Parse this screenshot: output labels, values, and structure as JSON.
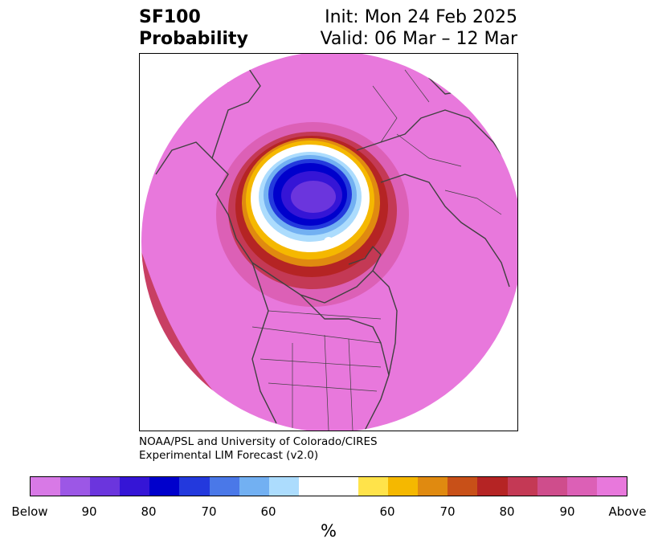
{
  "title": {
    "variable": "SF100",
    "metric": "Probability",
    "init": "Init: Mon 24 Feb 2025",
    "valid": "Valid: 06 Mar – 12 Mar"
  },
  "credit": {
    "line1": "NOAA/PSL and University of Colorado/CIRES",
    "line2": "Experimental LIM Forecast (v2.0)"
  },
  "legend": {
    "unit": "%",
    "colors": [
      "#d879e6",
      "#9c57e6",
      "#6b35dd",
      "#3515d6",
      "#0000cc",
      "#2339dd",
      "#4a78e8",
      "#72b0f2",
      "#acdcfd",
      "#ffffff",
      "#ffffff",
      "#ffe34a",
      "#f5b800",
      "#e08a10",
      "#c85018",
      "#b52424",
      "#c43955",
      "#cf4d8c",
      "#dc60b6",
      "#e878dc"
    ],
    "ticks": [
      "Below",
      "90",
      "80",
      "70",
      "60",
      "60",
      "70",
      "80",
      "90",
      "Above"
    ]
  },
  "colors": {
    "above_fill": "#e878dc",
    "below_core": "#6b35dd",
    "coastline": "#404040"
  }
}
